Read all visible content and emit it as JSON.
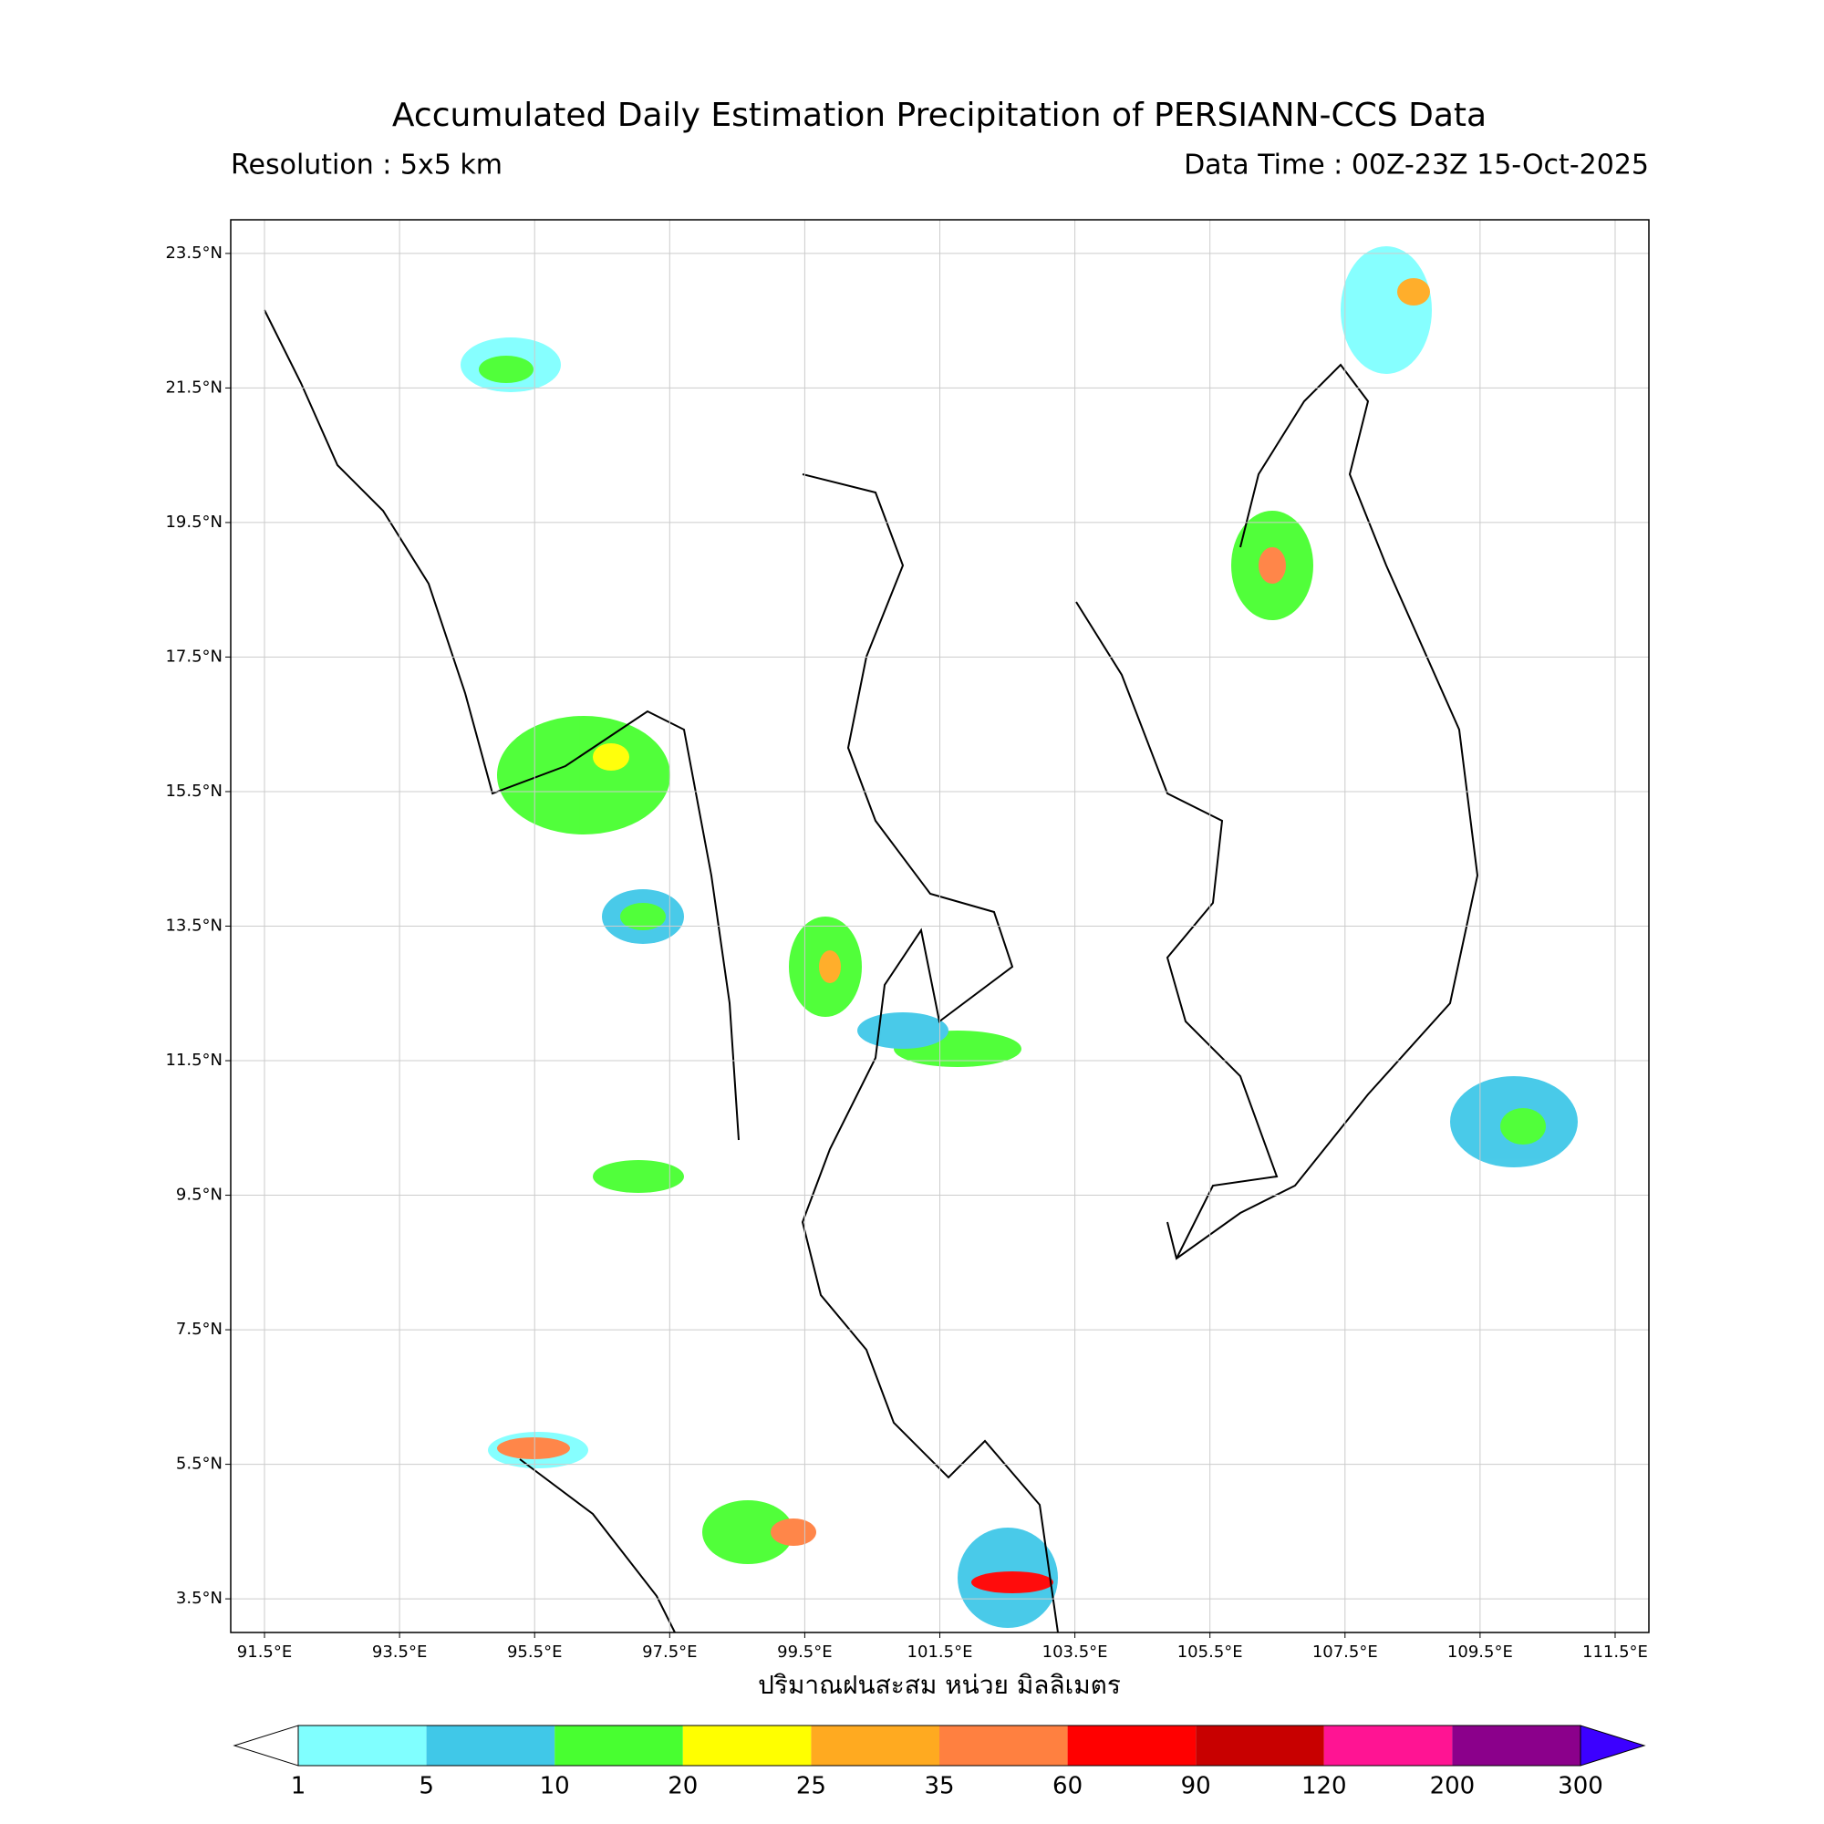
{
  "map": {
    "title": "Accumulated Daily Estimation Precipitation of PERSIANN-CCS Data",
    "resolution": "Resolution : 5x5 km",
    "data_time": "Data Time : 00Z-23Z 15-Oct-2025",
    "xlabel": "ปริมาณฝนสะสม หน่วย มิลลิเมตร",
    "lonlim": [
      91,
      112
    ],
    "latlim": [
      3,
      24
    ],
    "grid": true,
    "lon_ticks": [
      {
        "value": 91.5,
        "label": "91.5°E"
      },
      {
        "value": 93.5,
        "label": "93.5°E"
      },
      {
        "value": 95.5,
        "label": "95.5°E"
      },
      {
        "value": 97.5,
        "label": "97.5°E"
      },
      {
        "value": 99.5,
        "label": "99.5°E"
      },
      {
        "value": 101.5,
        "label": "101.5°E"
      },
      {
        "value": 103.5,
        "label": "103.5°E"
      },
      {
        "value": 105.5,
        "label": "105.5°E"
      },
      {
        "value": 107.5,
        "label": "107.5°E"
      },
      {
        "value": 109.5,
        "label": "109.5°E"
      },
      {
        "value": 111.5,
        "label": "111.5°E"
      }
    ],
    "lat_ticks": [
      {
        "value": 23.5,
        "label": "23.5°N"
      },
      {
        "value": 21.5,
        "label": "21.5°N"
      },
      {
        "value": 19.5,
        "label": "19.5°N"
      },
      {
        "value": 17.5,
        "label": "17.5°N"
      },
      {
        "value": 15.5,
        "label": "15.5°N"
      },
      {
        "value": 13.5,
        "label": "13.5°N"
      },
      {
        "value": 11.5,
        "label": "11.5°N"
      },
      {
        "value": 9.5,
        "label": "9.5°N"
      },
      {
        "value": 7.5,
        "label": "7.5°N"
      },
      {
        "value": 5.5,
        "label": "5.5°N"
      },
      {
        "value": 3.5,
        "label": "3.5°N"
      }
    ],
    "colorbar": {
      "levels": [
        1,
        5,
        10,
        20,
        25,
        35,
        60,
        90,
        120,
        200,
        300
      ],
      "colors": [
        "#80ffff",
        "#40c8e8",
        "#48ff30",
        "#ffff00",
        "#ffaa20",
        "#ff8040",
        "#ff0000",
        "#c80000",
        "#ff1493",
        "#8b008b"
      ],
      "under_color": "#ffffff",
      "over_color": "#3c00ff"
    }
  }
}
